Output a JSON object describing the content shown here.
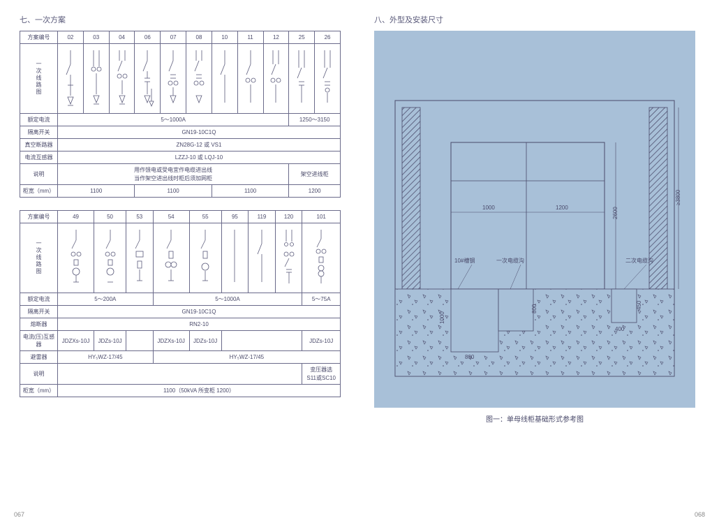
{
  "left": {
    "title": "七、一次方案",
    "table1": {
      "header_label": "方案编号",
      "scheme_nums": [
        "02",
        "03",
        "04",
        "06",
        "07",
        "08",
        "10",
        "11",
        "12",
        "25",
        "26"
      ],
      "diagram_label": "一次线路图",
      "rows": [
        {
          "label": "额定电流",
          "cells": [
            {
              "span": 9,
              "v": "5～1000A"
            },
            {
              "span": 2,
              "v": "1250～3150"
            }
          ]
        },
        {
          "label": "隔离开关",
          "cells": [
            {
              "span": 11,
              "v": "GN19-10C1Q"
            }
          ]
        },
        {
          "label": "真空断路器",
          "cells": [
            {
              "span": 11,
              "v": "ZN28G-12 或 VS1"
            }
          ]
        },
        {
          "label": "电流互感器",
          "cells": [
            {
              "span": 11,
              "v": "LZZJ-10 或 LQJ-10"
            }
          ]
        },
        {
          "label": "说明",
          "cells": [
            {
              "span": 9,
              "v": "用作馈电或受电宜作电缆进出线\n当作架空进出线时柜后须加网柜"
            },
            {
              "span": 2,
              "v": "架空进线柜"
            }
          ]
        },
        {
          "label": "柜宽（mm）",
          "cells": [
            {
              "span": 3,
              "v": "1100"
            },
            {
              "span": 3,
              "v": "1100"
            },
            {
              "span": 3,
              "v": "1100"
            },
            {
              "span": 2,
              "v": "1200"
            }
          ]
        }
      ]
    },
    "table2": {
      "header_label": "方案编号",
      "scheme_nums": [
        "49",
        "50",
        "53",
        "54",
        "55",
        "95",
        "119",
        "120",
        "101"
      ],
      "diagram_label": "一次线路图",
      "rows": [
        {
          "label": "额定电流",
          "cells": [
            {
              "span": 3,
              "v": "5～200A"
            },
            {
              "span": 5,
              "v": "5～1000A"
            },
            {
              "span": 1,
              "v": "5～75A"
            }
          ]
        },
        {
          "label": "隔离开关",
          "cells": [
            {
              "span": 9,
              "v": "GN19-10C1Q"
            }
          ]
        },
        {
          "label": "熔断器",
          "cells": [
            {
              "span": 9,
              "v": "RN2-10"
            }
          ]
        },
        {
          "label": "电流(压)互感器",
          "cells": [
            {
              "span": 1,
              "v": "JDZXs-10J"
            },
            {
              "span": 1,
              "v": "JDZs-10J"
            },
            {
              "span": 1,
              "v": ""
            },
            {
              "span": 1,
              "v": "JDZXs-10J"
            },
            {
              "span": 1,
              "v": "JDZs-10J"
            },
            {
              "span": 3,
              "v": ""
            },
            {
              "span": 1,
              "v": "JDZs-10J"
            }
          ]
        },
        {
          "label": "避雷器",
          "cells": [
            {
              "span": 3,
              "v": "HY₅WZ-17/45"
            },
            {
              "span": 6,
              "v": "HY₅WZ-17/45"
            }
          ]
        },
        {
          "label": "说明",
          "cells": [
            {
              "span": 8,
              "v": ""
            },
            {
              "span": 1,
              "v": "变压器选\nS11或SC10"
            }
          ]
        },
        {
          "label": "柜宽（mm）",
          "cells": [
            {
              "span": 9,
              "v": "1100（50kVA 所变柜 1200）"
            }
          ]
        }
      ]
    }
  },
  "right": {
    "title": "八、外型及安装尺寸",
    "diagram": {
      "background": "#a8c0d8",
      "dims": {
        "top_left": "1000",
        "top_right": "1200",
        "height_inner": "2600",
        "height_outer": "≥3800",
        "trench_depth_left": "1000",
        "trench_width_left": "800",
        "trench_depth_mid": "800",
        "trench_right_w": "400",
        "trench_right_h": "450"
      },
      "labels": {
        "channel": "10#槽钢",
        "primary_trench": "一次电缆沟",
        "secondary_trench": "二次电缆沟"
      },
      "caption": "图一：单母线柜基础形式参考图"
    }
  },
  "page_left": "067",
  "page_right": "068",
  "colors": {
    "line": "#5a5a7a",
    "text": "#4a4a6a",
    "bg_diagram": "#a8c0d8"
  }
}
